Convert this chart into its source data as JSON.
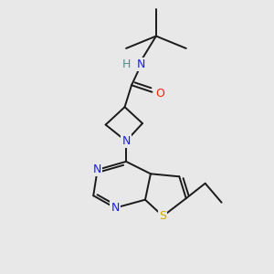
{
  "background_color": "#e8e8e8",
  "fig_size": [
    3.0,
    3.0
  ],
  "dpi": 100,
  "atom_colors": {
    "H": "#4a9090",
    "N": "#1a1aff",
    "O": "#ff2000",
    "S": "#ccaa00",
    "C": "#1a1a1a"
  },
  "bond_color": "#1a1a1a",
  "bond_width": 1.4
}
